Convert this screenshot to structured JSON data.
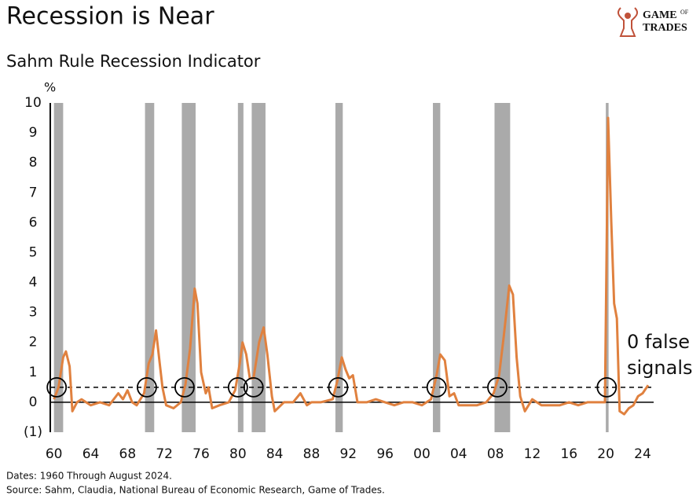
{
  "chart_data": {
    "type": "line",
    "title": "Recession is Near",
    "subtitle": "Sahm Rule Recession Indicator",
    "y_label": "%",
    "logo": [
      "GAME",
      "OF",
      "TRADES"
    ],
    "annotation": [
      "0 false",
      "signals"
    ],
    "notes": [
      "Dates: 1960 Through August 2024.",
      "Source: Sahm, Claudia, National Bureau of Economic Research, Game of Trades."
    ],
    "xlim": [
      1959.6,
      2025.2
    ],
    "ylim": [
      -1,
      10
    ],
    "xticks": [
      {
        "value": 1960,
        "label": "60"
      },
      {
        "value": 1964,
        "label": "64"
      },
      {
        "value": 1968,
        "label": "68"
      },
      {
        "value": 1972,
        "label": "72"
      },
      {
        "value": 1976,
        "label": "76"
      },
      {
        "value": 1980,
        "label": "80"
      },
      {
        "value": 1984,
        "label": "84"
      },
      {
        "value": 1988,
        "label": "88"
      },
      {
        "value": 1992,
        "label": "92"
      },
      {
        "value": 1996,
        "label": "96"
      },
      {
        "value": 2000,
        "label": "00"
      },
      {
        "value": 2004,
        "label": "04"
      },
      {
        "value": 2008,
        "label": "08"
      },
      {
        "value": 2012,
        "label": "12"
      },
      {
        "value": 2016,
        "label": "16"
      },
      {
        "value": 2020,
        "label": "20"
      },
      {
        "value": 2024,
        "label": "24"
      }
    ],
    "yticks": [
      {
        "value": -1,
        "label": "(1)"
      },
      0,
      1,
      2,
      3,
      4,
      5,
      6,
      7,
      8,
      9,
      10
    ],
    "threshold": 0.5,
    "recessions": [
      [
        1960.0,
        1961.0
      ],
      [
        1969.9,
        1970.9
      ],
      [
        1973.9,
        1975.4
      ],
      [
        1980.0,
        1980.6
      ],
      [
        1981.5,
        1983.0
      ],
      [
        1990.6,
        1991.4
      ],
      [
        2001.2,
        2002.0
      ],
      [
        2007.9,
        2009.6
      ],
      [
        2020.0,
        2020.3
      ]
    ],
    "signals": [
      1960.3,
      1970.1,
      1974.2,
      1980.0,
      1981.7,
      1990.9,
      2001.6,
      2008.2,
      2020.1
    ],
    "x": [
      1960.0,
      1960.5,
      1961.0,
      1961.3,
      1961.7,
      1962.0,
      1962.5,
      1963.0,
      1964.0,
      1965.0,
      1966.0,
      1967.0,
      1967.5,
      1968.0,
      1968.5,
      1969.0,
      1969.8,
      1970.3,
      1970.7,
      1971.1,
      1971.5,
      1971.8,
      1972.2,
      1973.0,
      1973.8,
      1974.3,
      1974.8,
      1975.3,
      1975.6,
      1976.0,
      1976.5,
      1976.8,
      1977.2,
      1978.0,
      1979.0,
      1979.7,
      1980.2,
      1980.5,
      1980.9,
      1981.3,
      1981.7,
      1982.3,
      1982.8,
      1983.2,
      1983.7,
      1984.0,
      1985.0,
      1986.0,
      1986.8,
      1987.5,
      1988.0,
      1989.0,
      1990.3,
      1990.8,
      1991.3,
      1991.7,
      1992.1,
      1992.5,
      1993.0,
      1994.0,
      1995.0,
      1996.0,
      1997.0,
      1998.0,
      1999.0,
      2000.0,
      2001.0,
      2001.6,
      2002.0,
      2002.5,
      2003.0,
      2003.5,
      2004.0,
      2005.0,
      2006.0,
      2007.0,
      2007.8,
      2008.4,
      2008.9,
      2009.5,
      2009.9,
      2010.3,
      2010.7,
      2011.2,
      2012.0,
      2013.0,
      2014.0,
      2015.0,
      2016.0,
      2017.0,
      2018.0,
      2019.0,
      2019.9,
      2020.25,
      2020.6,
      2020.9,
      2021.2,
      2021.5,
      2022.0,
      2022.5,
      2023.0,
      2023.5,
      2024.0,
      2024.6
    ],
    "series": [
      {
        "name": "Sahm Rule",
        "color": "#e0813f",
        "values": [
          0.1,
          0.5,
          1.5,
          1.7,
          1.2,
          -0.3,
          0.0,
          0.1,
          -0.1,
          0.0,
          -0.1,
          0.3,
          0.1,
          0.4,
          0.0,
          -0.1,
          0.3,
          1.3,
          1.6,
          2.4,
          1.3,
          0.5,
          -0.1,
          -0.2,
          0.0,
          0.6,
          1.8,
          3.8,
          3.3,
          1.0,
          0.3,
          0.5,
          -0.2,
          -0.1,
          0.0,
          0.4,
          1.3,
          2.0,
          1.6,
          0.8,
          0.8,
          2.0,
          2.5,
          1.6,
          0.2,
          -0.3,
          0.0,
          0.0,
          0.3,
          -0.1,
          0.0,
          0.0,
          0.1,
          0.7,
          1.5,
          1.1,
          0.8,
          0.9,
          0.0,
          0.0,
          0.1,
          0.0,
          -0.1,
          0.0,
          0.0,
          -0.1,
          0.1,
          0.9,
          1.6,
          1.4,
          0.2,
          0.3,
          -0.1,
          -0.1,
          -0.1,
          0.0,
          0.3,
          0.9,
          2.2,
          3.9,
          3.6,
          1.5,
          0.2,
          -0.3,
          0.1,
          -0.1,
          -0.1,
          -0.1,
          0.0,
          -0.1,
          0.0,
          0.0,
          0.0,
          9.5,
          6.0,
          3.3,
          2.8,
          -0.3,
          -0.4,
          -0.2,
          -0.1,
          0.2,
          0.3,
          0.57
        ]
      }
    ]
  }
}
